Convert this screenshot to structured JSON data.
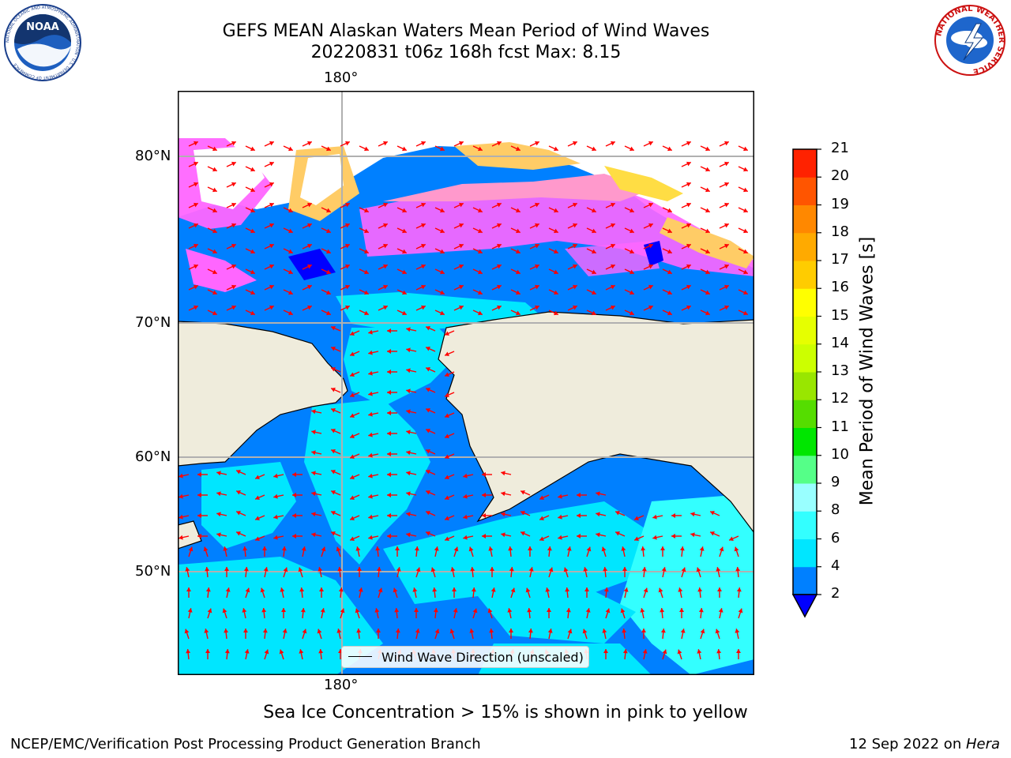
{
  "header": {
    "title_line1": "GEFS MEAN Alaskan Waters Mean Period of Wind Waves",
    "title_line2": "20220831 t06z 168h fcst   Max: 8.15"
  },
  "logos": {
    "left": "NOAA",
    "right": "NATIONAL WEATHER SERVICE",
    "noaa_ring_text": "NATIONAL OCEANIC AND ATMOSPHERIC ADMINISTRATION · U.S. DEPARTMENT OF COMMERCE"
  },
  "map": {
    "lon_label_top": "180°",
    "lon_label_bottom": "180°",
    "lat_labels": [
      "80°N",
      "70°N",
      "60°N",
      "50°N"
    ],
    "land_color": "#efecdc",
    "ice_colors": [
      "#ff66ff",
      "#ff99cc",
      "#ffcc66",
      "#ffdd44"
    ]
  },
  "legend": {
    "label": "Wind Wave Direction (unscaled)"
  },
  "colorbar": {
    "label": "Mean Period of Wind Waves [s]",
    "ticks": [
      "2",
      "4",
      "6",
      "8",
      "9",
      "10",
      "11",
      "12",
      "13",
      "14",
      "15",
      "16",
      "17",
      "18",
      "19",
      "20",
      "21"
    ],
    "colors": [
      "#0080ff",
      "#00e6ff",
      "#33ffff",
      "#99ffff",
      "#55ff88",
      "#00e600",
      "#55dd00",
      "#99e600",
      "#ccff00",
      "#e6ff00",
      "#ffff00",
      "#ffcc00",
      "#ffaa00",
      "#ff8800",
      "#ff5500",
      "#ff2200",
      "#ff0000"
    ],
    "extend_color": "#0000ff"
  },
  "caption": "Sea Ice Concentration > 15% is shown in pink to yellow",
  "footer": {
    "left": "NCEP/EMC/Verification Post Processing Product Generation Branch",
    "right_prefix": "12 Sep 2022 on ",
    "right_host": "Hera"
  }
}
